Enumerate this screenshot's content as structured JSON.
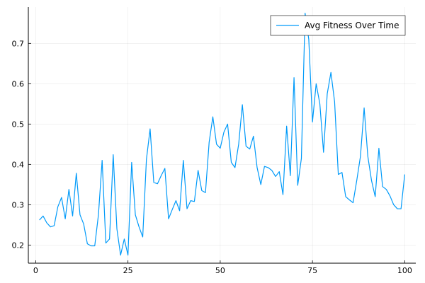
{
  "chart_data": {
    "type": "line",
    "title": "",
    "xlabel": "",
    "ylabel": "",
    "xlim": [
      -2,
      103
    ],
    "ylim": [
      0.155,
      0.79
    ],
    "xticks": [
      0,
      25,
      50,
      75,
      100
    ],
    "yticks": [
      0.2,
      0.3,
      0.4,
      0.5,
      0.6,
      0.7
    ],
    "xtick_labels": [
      "0",
      "25",
      "50",
      "75",
      "100"
    ],
    "ytick_labels": [
      "0.2",
      "0.3",
      "0.4",
      "0.5",
      "0.6",
      "0.7"
    ],
    "grid": true,
    "legend_position": "top-right",
    "series": [
      {
        "name": "Avg Fitness Over Time",
        "color": "#009af9",
        "x": [
          1,
          2,
          3,
          4,
          5,
          6,
          7,
          8,
          9,
          10,
          11,
          12,
          13,
          14,
          15,
          16,
          17,
          18,
          19,
          20,
          21,
          22,
          23,
          24,
          25,
          26,
          27,
          28,
          29,
          30,
          31,
          32,
          33,
          34,
          35,
          36,
          37,
          38,
          39,
          40,
          41,
          42,
          43,
          44,
          45,
          46,
          47,
          48,
          49,
          50,
          51,
          52,
          53,
          54,
          55,
          56,
          57,
          58,
          59,
          60,
          61,
          62,
          63,
          64,
          65,
          66,
          67,
          68,
          69,
          70,
          71,
          72,
          73,
          74,
          75,
          76,
          77,
          78,
          79,
          80,
          81,
          82,
          83,
          84,
          85,
          86,
          87,
          88,
          89,
          90,
          91,
          92,
          93,
          94,
          95,
          96,
          97,
          98,
          99,
          100
        ],
        "y": [
          0.262,
          0.272,
          0.255,
          0.245,
          0.248,
          0.295,
          0.318,
          0.265,
          0.338,
          0.272,
          0.378,
          0.275,
          0.252,
          0.203,
          0.198,
          0.198,
          0.275,
          0.41,
          0.205,
          0.215,
          0.424,
          0.24,
          0.175,
          0.215,
          0.175,
          0.405,
          0.275,
          0.245,
          0.22,
          0.412,
          0.488,
          0.355,
          0.352,
          0.372,
          0.39,
          0.265,
          0.288,
          0.31,
          0.285,
          0.41,
          0.29,
          0.31,
          0.308,
          0.385,
          0.335,
          0.33,
          0.455,
          0.518,
          0.45,
          0.44,
          0.48,
          0.5,
          0.405,
          0.392,
          0.45,
          0.548,
          0.445,
          0.438,
          0.47,
          0.392,
          0.35,
          0.395,
          0.392,
          0.385,
          0.37,
          0.382,
          0.325,
          0.495,
          0.372,
          0.615,
          0.348,
          0.415,
          0.775,
          0.71,
          0.505,
          0.6,
          0.55,
          0.43,
          0.575,
          0.628,
          0.555,
          0.375,
          0.38,
          0.32,
          0.312,
          0.305,
          0.36,
          0.42,
          0.54,
          0.42,
          0.36,
          0.32,
          0.44,
          0.345,
          0.338,
          0.322,
          0.3,
          0.29,
          0.29,
          0.375
        ]
      }
    ]
  }
}
